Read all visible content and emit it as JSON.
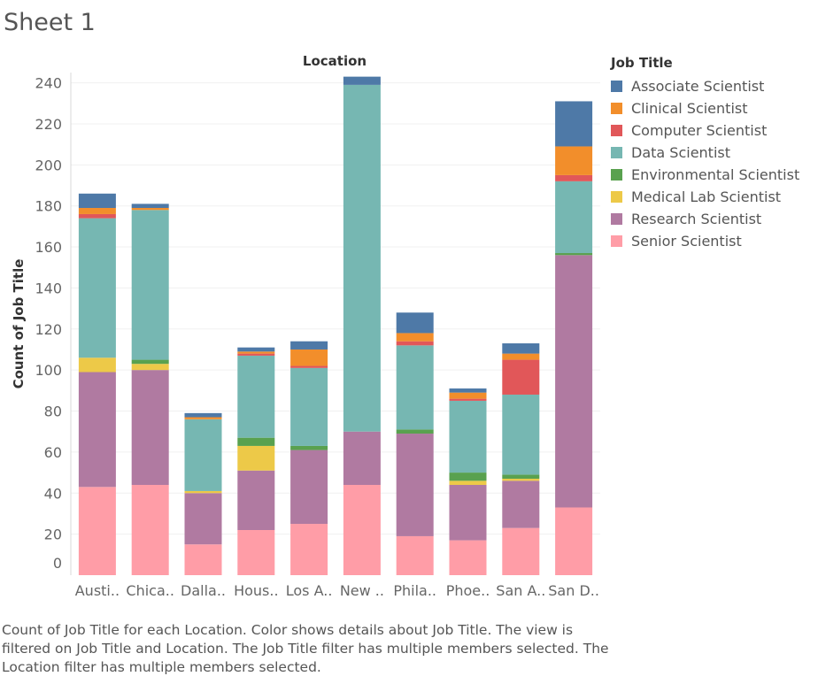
{
  "sheet": {
    "title": "Sheet 1"
  },
  "chart_data": {
    "type": "bar",
    "stacked": true,
    "title": "Location",
    "xlabel": "",
    "ylabel": "Count of Job Title",
    "ylim": [
      0,
      245
    ],
    "yticks": [
      0,
      20,
      40,
      60,
      80,
      100,
      120,
      140,
      160,
      180,
      200,
      220,
      240
    ],
    "grid": true,
    "legend_title": "Job Title",
    "legend_position": "right",
    "categories": [
      "Austi..",
      "Chica..",
      "Dalla..",
      "Hous..",
      "Los A..",
      "New ..",
      "Phila..",
      "Phoe..",
      "San A..",
      "San D.."
    ],
    "series": [
      {
        "name": "Senior Scientist",
        "color": "#FF9DA7",
        "values": [
          43,
          44,
          15,
          22,
          25,
          44,
          19,
          17,
          23,
          33
        ]
      },
      {
        "name": "Research Scientist",
        "color": "#B07AA1",
        "values": [
          56,
          56,
          25,
          29,
          36,
          26,
          50,
          27,
          23,
          123
        ]
      },
      {
        "name": "Medical Lab Scientist",
        "color": "#EDC948",
        "values": [
          7,
          3,
          1,
          12,
          0,
          0,
          0,
          2,
          1,
          0
        ]
      },
      {
        "name": "Environmental Scientist",
        "color": "#59A14F",
        "values": [
          0,
          2,
          0,
          4,
          2,
          0,
          2,
          4,
          2,
          1
        ]
      },
      {
        "name": "Data Scientist",
        "color": "#76B7B2",
        "values": [
          68,
          73,
          35,
          40,
          38,
          169,
          41,
          35,
          39,
          35
        ]
      },
      {
        "name": "Computer Scientist",
        "color": "#E15759",
        "values": [
          2,
          0,
          0,
          1,
          1,
          0,
          2,
          1,
          17,
          3
        ]
      },
      {
        "name": "Clinical Scientist",
        "color": "#F28E2B",
        "values": [
          3,
          1,
          1,
          1,
          8,
          0,
          4,
          3,
          3,
          14
        ]
      },
      {
        "name": "Associate Scientist",
        "color": "#4E79A7",
        "values": [
          7,
          2,
          2,
          2,
          4,
          4,
          10,
          2,
          5,
          22
        ]
      }
    ]
  },
  "legend": {
    "title": "Job Title",
    "items": [
      {
        "label": "Associate Scientist",
        "color": "#4E79A7"
      },
      {
        "label": "Clinical Scientist",
        "color": "#F28E2B"
      },
      {
        "label": "Computer Scientist",
        "color": "#E15759"
      },
      {
        "label": "Data Scientist",
        "color": "#76B7B2"
      },
      {
        "label": "Environmental Scientist",
        "color": "#59A14F"
      },
      {
        "label": "Medical Lab Scientist",
        "color": "#EDC948"
      },
      {
        "label": "Research Scientist",
        "color": "#B07AA1"
      },
      {
        "label": "Senior Scientist",
        "color": "#FF9DA7"
      }
    ]
  },
  "caption": "Count of Job Title for each Location.  Color shows details about Job Title. The view is filtered on Job Title and Location. The Job Title filter has multiple members selected. The Location filter has multiple members selected."
}
